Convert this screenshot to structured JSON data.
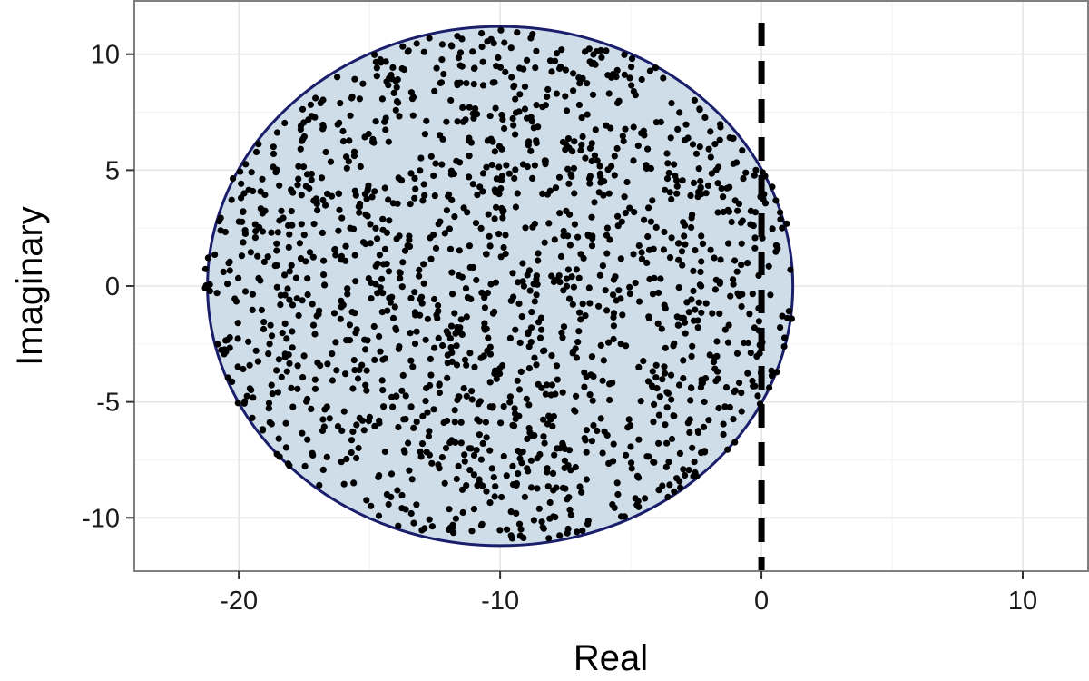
{
  "chart_data": {
    "type": "scatter",
    "title": "",
    "xlabel": "Real",
    "ylabel": "Imaginary",
    "xlim": [
      -24,
      12.5
    ],
    "ylim": [
      -12.3,
      12.3
    ],
    "x_ticks": [
      -20,
      -10,
      0,
      10
    ],
    "x_tick_labels": [
      "-20",
      "-10",
      "0",
      "10"
    ],
    "y_ticks": [
      -10,
      -5,
      0,
      5,
      10
    ],
    "y_tick_labels": [
      "-10",
      "-5",
      "0",
      "5",
      "10"
    ],
    "grid": true,
    "legend": "none",
    "circle": {
      "center": [
        -10,
        0
      ],
      "radius": 11.2,
      "fill": "#cfdde8",
      "stroke": "#1b1f6b"
    },
    "reference_line": {
      "x": 0,
      "style": "dashed",
      "color": "#000000"
    },
    "series": [
      {
        "color": "#000000",
        "point_count": 1600,
        "distribution": "uniform within circle centered at -10+0i, radius 11.2, slightly exceeding to real ≈ 1.3"
      }
    ]
  }
}
